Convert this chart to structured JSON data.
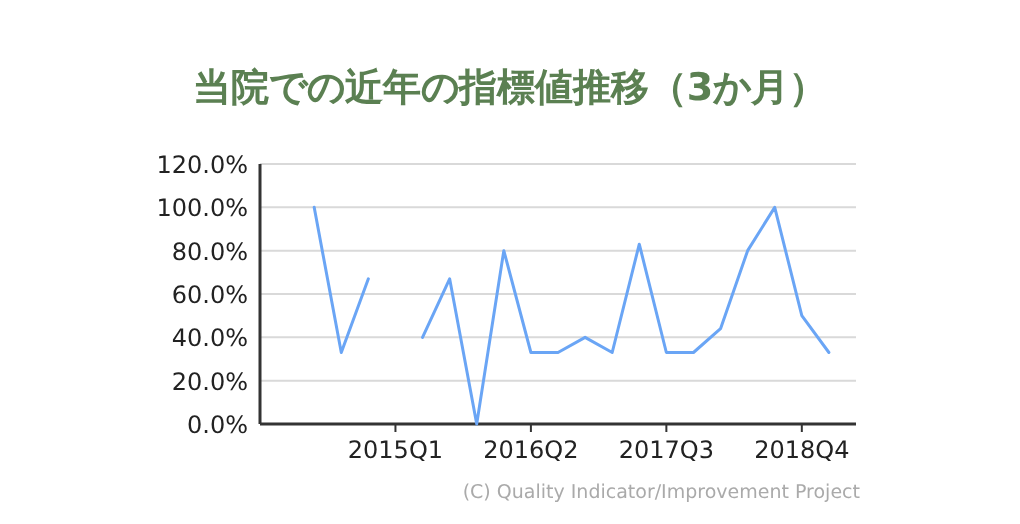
{
  "chart_data": {
    "type": "line",
    "title": "当院での近年の指標値推移（3か月）",
    "categories": [
      null,
      null,
      null,
      null,
      null,
      "2015Q1",
      null,
      null,
      null,
      null,
      "2016Q2",
      null,
      null,
      null,
      null,
      "2017Q3",
      null,
      null,
      null,
      null,
      "2018Q4",
      null,
      null
    ],
    "series": [
      {
        "color": "#6aa5f5",
        "values": [
          null,
          null,
          100,
          33,
          67,
          null,
          40,
          67,
          0,
          80,
          33,
          33,
          40,
          33,
          83,
          33,
          33,
          44,
          80,
          100,
          50,
          33,
          null
        ]
      }
    ],
    "ylim": [
      0,
      120
    ],
    "yticks": [
      {
        "value": 0,
        "label": "0.0%"
      },
      {
        "value": 20,
        "label": "20.0%"
      },
      {
        "value": 40,
        "label": "40.0%"
      },
      {
        "value": 60,
        "label": "60.0%"
      },
      {
        "value": 80,
        "label": "80.0%"
      },
      {
        "value": 100,
        "label": "100.0%"
      },
      {
        "value": 120,
        "label": "120.0%"
      }
    ],
    "grid": "y",
    "marker": "none",
    "line_style": "solid",
    "annotations": [
      "(C) Quality Indicator/Improvement Project"
    ]
  }
}
